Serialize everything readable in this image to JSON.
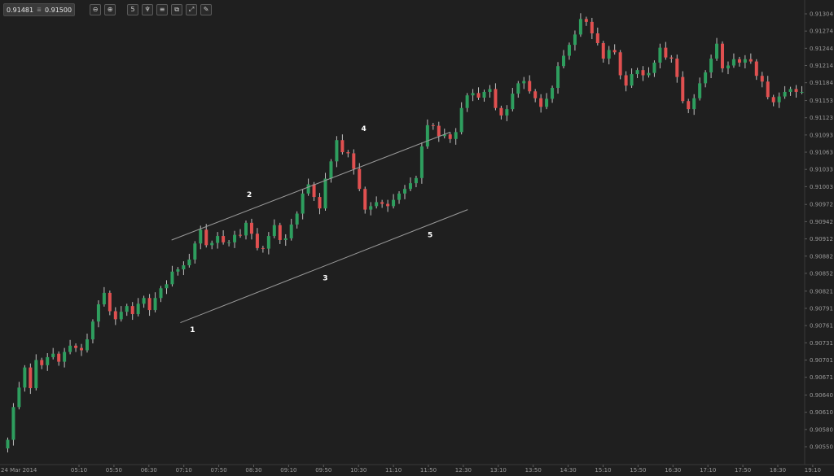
{
  "toolbar": {
    "bid": "0.91481",
    "ask": "0.91500",
    "separator_icon": "≣",
    "buttons": [
      {
        "name": "zoom-out-icon",
        "glyph": "⊖"
      },
      {
        "name": "zoom-in-icon",
        "glyph": "⊕"
      },
      {
        "name": "timeframe-icon",
        "glyph": "5"
      },
      {
        "name": "chart-type-icon",
        "glyph": "♆"
      },
      {
        "name": "indicators-icon",
        "glyph": "≡"
      },
      {
        "name": "drawing-tools-icon",
        "glyph": "⧉"
      },
      {
        "name": "trend-line-icon",
        "glyph": "⤢"
      },
      {
        "name": "pencil-icon",
        "glyph": "✎"
      }
    ]
  },
  "colors": {
    "background": "#1f1f1f",
    "up": "#2e9e5e",
    "down": "#e05050",
    "wick": "#bfbfbf",
    "channel": "#9a9a9a",
    "axis_text": "#9a9a9a"
  },
  "chart_data": {
    "type": "candlestick",
    "x_start_label": "24 Mar 2014",
    "x_labels": [
      "05:10",
      "05:50",
      "06:30",
      "07:10",
      "07:50",
      "08:30",
      "09:10",
      "09:50",
      "10:30",
      "11:10",
      "11:50",
      "12:30",
      "13:10",
      "13:50",
      "14:30",
      "15:10",
      "15:50",
      "16:30",
      "17:10",
      "17:50",
      "18:30",
      "19:10"
    ],
    "y_labels": [
      "0.91304",
      "0.91274",
      "0.91244",
      "0.91214",
      "0.91184",
      "0.91153",
      "0.91123",
      "0.91093",
      "0.91063",
      "0.91033",
      "0.91003",
      "0.90972",
      "0.90942",
      "0.90912",
      "0.90882",
      "0.90852",
      "0.90821",
      "0.90791",
      "0.90761",
      "0.90731",
      "0.90701",
      "0.90671",
      "0.90640",
      "0.90610",
      "0.90580",
      "0.90550"
    ],
    "ylim": [
      0.9053,
      0.9132
    ],
    "time_range_minutes": [
      240,
      1150
    ],
    "closes": [
      0.90562,
      0.90619,
      0.90653,
      0.90688,
      0.90652,
      0.90701,
      0.90692,
      0.90706,
      0.90712,
      0.90698,
      0.90715,
      0.90726,
      0.90722,
      0.90718,
      0.90737,
      0.90768,
      0.90798,
      0.90818,
      0.90786,
      0.90772,
      0.90785,
      0.90795,
      0.90781,
      0.90799,
      0.90809,
      0.90788,
      0.90809,
      0.90826,
      0.90833,
      0.90855,
      0.90859,
      0.90866,
      0.90876,
      0.90904,
      0.90928,
      0.90901,
      0.90905,
      0.90917,
      0.90906,
      0.90906,
      0.90919,
      0.90918,
      0.9094,
      0.90921,
      0.90896,
      0.90895,
      0.90917,
      0.90936,
      0.9091,
      0.90913,
      0.90937,
      0.90956,
      0.90991,
      0.91007,
      0.90985,
      0.90965,
      0.91017,
      0.91047,
      0.91084,
      0.91063,
      0.91061,
      0.91034,
      0.90999,
      0.90963,
      0.90969,
      0.90976,
      0.90973,
      0.90969,
      0.9098,
      0.90991,
      0.90999,
      0.91009,
      0.91018,
      0.91073,
      0.9111,
      0.91109,
      0.91091,
      0.91094,
      0.91086,
      0.91098,
      0.9114,
      0.91162,
      0.91166,
      0.91158,
      0.91168,
      0.91173,
      0.9114,
      0.91127,
      0.91138,
      0.91165,
      0.91183,
      0.91187,
      0.91169,
      0.91157,
      0.91142,
      0.91156,
      0.91175,
      0.91213,
      0.91231,
      0.9125,
      0.91268,
      0.91295,
      0.9129,
      0.9127,
      0.91253,
      0.91226,
      0.91241,
      0.91237,
      0.91197,
      0.91179,
      0.91199,
      0.91206,
      0.91197,
      0.91201,
      0.91219,
      0.91245,
      0.91228,
      0.91226,
      0.91194,
      0.91152,
      0.91138,
      0.91157,
      0.91183,
      0.91202,
      0.91226,
      0.91252,
      0.91209,
      0.91214,
      0.91225,
      0.91219,
      0.91225,
      0.91221,
      0.91196,
      0.91186,
      0.91159,
      0.9115,
      0.9116,
      0.91168,
      0.91173,
      0.91168,
      0.91168
    ]
  },
  "annotations": {
    "wave_labels": [
      {
        "text": "1",
        "time_min": 440,
        "price": 0.9075
      },
      {
        "text": "2",
        "time_min": 505,
        "price": 0.90985
      },
      {
        "text": "3",
        "time_min": 592,
        "price": 0.9084
      },
      {
        "text": "4",
        "time_min": 636,
        "price": 0.911
      },
      {
        "text": "5",
        "time_min": 712,
        "price": 0.90915
      }
    ],
    "channel_lines": [
      {
        "t1": 416,
        "p1": 0.9091,
        "t2": 735,
        "p2": 0.91098
      },
      {
        "t1": 426,
        "p1": 0.90766,
        "t2": 755,
        "p2": 0.90963
      }
    ]
  }
}
